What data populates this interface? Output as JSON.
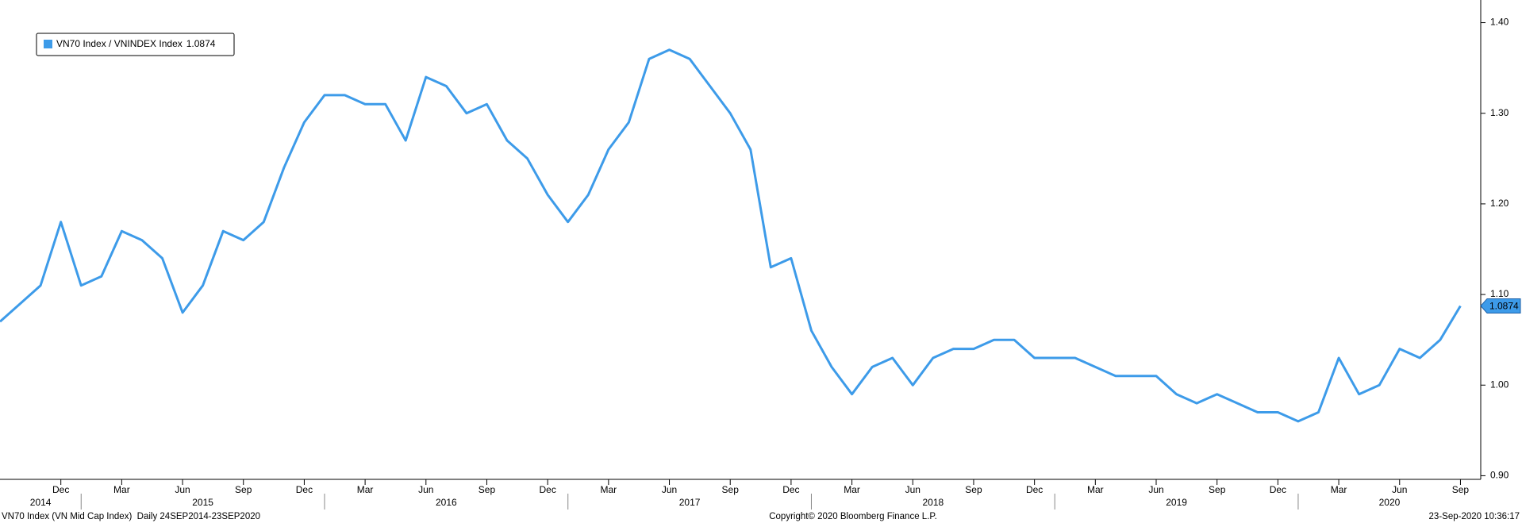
{
  "chart_data": {
    "type": "line",
    "series": [
      {
        "name": "VN70 Index / VNINDEX Index",
        "color": "#3d9be9",
        "values": [
          1.07,
          1.09,
          1.11,
          1.18,
          1.11,
          1.12,
          1.17,
          1.16,
          1.14,
          1.08,
          1.11,
          1.17,
          1.16,
          1.18,
          1.24,
          1.29,
          1.32,
          1.32,
          1.31,
          1.31,
          1.27,
          1.34,
          1.33,
          1.3,
          1.31,
          1.27,
          1.25,
          1.21,
          1.18,
          1.21,
          1.26,
          1.29,
          1.36,
          1.37,
          1.36,
          1.33,
          1.3,
          1.26,
          1.13,
          1.14,
          1.06,
          1.02,
          0.99,
          1.02,
          1.03,
          1.0,
          1.03,
          1.04,
          1.04,
          1.05,
          1.05,
          1.03,
          1.03,
          1.03,
          1.02,
          1.01,
          1.01,
          1.01,
          0.99,
          0.98,
          0.99,
          0.98,
          0.97,
          0.97,
          0.96,
          0.97,
          1.03,
          0.99,
          1.0,
          1.04,
          1.03,
          1.05,
          1.0874
        ]
      }
    ],
    "x": [
      "2014-09",
      "2014-10",
      "2014-11",
      "2014-12",
      "2015-01",
      "2015-02",
      "2015-03",
      "2015-04",
      "2015-05",
      "2015-06",
      "2015-07",
      "2015-08",
      "2015-09",
      "2015-10",
      "2015-11",
      "2015-12",
      "2016-01",
      "2016-02",
      "2016-03",
      "2016-04",
      "2016-05",
      "2016-06",
      "2016-07",
      "2016-08",
      "2016-09",
      "2016-10",
      "2016-11",
      "2016-12",
      "2017-01",
      "2017-02",
      "2017-03",
      "2017-04",
      "2017-05",
      "2017-06",
      "2017-07",
      "2017-08",
      "2017-09",
      "2017-10",
      "2017-11",
      "2017-12",
      "2018-01",
      "2018-02",
      "2018-03",
      "2018-04",
      "2018-05",
      "2018-06",
      "2018-07",
      "2018-08",
      "2018-09",
      "2018-10",
      "2018-11",
      "2018-12",
      "2019-01",
      "2019-02",
      "2019-03",
      "2019-04",
      "2019-05",
      "2019-06",
      "2019-07",
      "2019-08",
      "2019-09",
      "2019-10",
      "2019-11",
      "2019-12",
      "2020-01",
      "2020-02",
      "2020-03",
      "2020-04",
      "2020-05",
      "2020-06",
      "2020-07",
      "2020-08",
      "2020-09"
    ],
    "xlim": [
      "2014-09",
      "2020-10"
    ],
    "xticks": [
      {
        "value": "2014-12",
        "label": "Dec"
      },
      {
        "value": "2015-03",
        "label": "Mar"
      },
      {
        "value": "2015-06",
        "label": "Jun"
      },
      {
        "value": "2015-09",
        "label": "Sep"
      },
      {
        "value": "2015-12",
        "label": "Dec"
      },
      {
        "value": "2016-03",
        "label": "Mar"
      },
      {
        "value": "2016-06",
        "label": "Jun"
      },
      {
        "value": "2016-09",
        "label": "Sep"
      },
      {
        "value": "2016-12",
        "label": "Dec"
      },
      {
        "value": "2017-03",
        "label": "Mar"
      },
      {
        "value": "2017-06",
        "label": "Jun"
      },
      {
        "value": "2017-09",
        "label": "Sep"
      },
      {
        "value": "2017-12",
        "label": "Dec"
      },
      {
        "value": "2018-03",
        "label": "Mar"
      },
      {
        "value": "2018-06",
        "label": "Jun"
      },
      {
        "value": "2018-09",
        "label": "Sep"
      },
      {
        "value": "2018-12",
        "label": "Dec"
      },
      {
        "value": "2019-03",
        "label": "Mar"
      },
      {
        "value": "2019-06",
        "label": "Jun"
      },
      {
        "value": "2019-09",
        "label": "Sep"
      },
      {
        "value": "2019-12",
        "label": "Dec"
      },
      {
        "value": "2020-03",
        "label": "Mar"
      },
      {
        "value": "2020-06",
        "label": "Jun"
      },
      {
        "value": "2020-09",
        "label": "Sep"
      }
    ],
    "years": [
      "2014",
      "2015",
      "2016",
      "2017",
      "2018",
      "2019",
      "2020"
    ],
    "ylim": [
      0.896,
      1.425
    ],
    "yticks": [
      {
        "value": 0.9,
        "label": "0.90"
      },
      {
        "value": 1.0,
        "label": "1.00"
      },
      {
        "value": 1.1,
        "label": "1.10"
      },
      {
        "value": 1.2,
        "label": "1.20"
      },
      {
        "value": 1.3,
        "label": "1.30"
      },
      {
        "value": 1.4,
        "label": "1.40"
      }
    ],
    "grid": false,
    "legend": "top-left",
    "footer": {
      "left": "VN70 Index (VN Mid Cap Index)  Daily 24SEP2014-23SEP2020",
      "center": "Copyright© 2020 Bloomberg Finance L.P.",
      "right": "23-Sep-2020 10:36:17"
    }
  }
}
